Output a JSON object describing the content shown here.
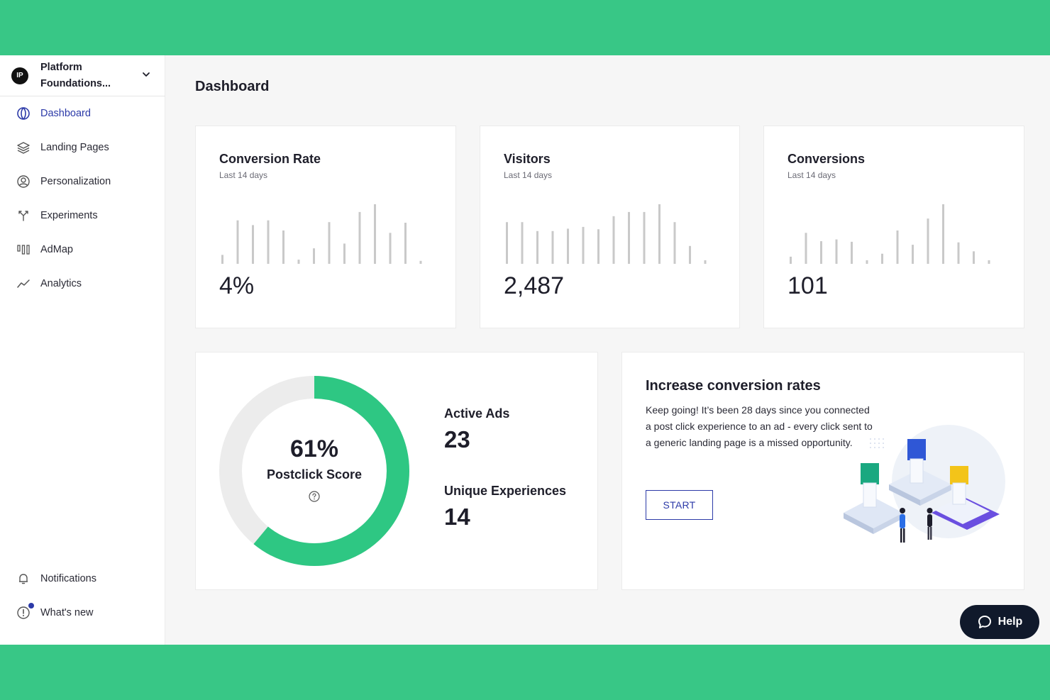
{
  "workspace": {
    "logo_text": "IP",
    "name": "Platform Foundations..."
  },
  "sidebar": {
    "items": [
      {
        "label": "Dashboard",
        "icon": "dashboard-icon",
        "active": true
      },
      {
        "label": "Landing Pages",
        "icon": "layers-icon"
      },
      {
        "label": "Personalization",
        "icon": "user-circle-icon"
      },
      {
        "label": "Experiments",
        "icon": "experiment-split-icon"
      },
      {
        "label": "AdMap",
        "icon": "admap-icon"
      },
      {
        "label": "Analytics",
        "icon": "trend-line-icon"
      }
    ],
    "bottom": [
      {
        "label": "Notifications",
        "icon": "bell-icon"
      },
      {
        "label": "What's new",
        "icon": "info-circle-icon",
        "has_unread_dot": true
      }
    ]
  },
  "page": {
    "title": "Dashboard"
  },
  "metrics": [
    {
      "title": "Conversion Rate",
      "period": "Last 14 days",
      "value": "4%",
      "bars": [
        0.15,
        0.73,
        0.65,
        0.73,
        0.56,
        0.07,
        0.26,
        0.7,
        0.34,
        0.87,
        1.0,
        0.52,
        0.69,
        0.05
      ]
    },
    {
      "title": "Visitors",
      "period": "Last 14 days",
      "value": "2,487",
      "bars": [
        0.7,
        0.7,
        0.55,
        0.55,
        0.59,
        0.62,
        0.58,
        0.8,
        0.87,
        0.87,
        1.0,
        0.7,
        0.3,
        0.06
      ]
    },
    {
      "title": "Conversions",
      "period": "Last 14 days",
      "value": "101",
      "bars": [
        0.12,
        0.52,
        0.38,
        0.41,
        0.37,
        0.06,
        0.17,
        0.56,
        0.32,
        0.76,
        1.0,
        0.36,
        0.21,
        0.06
      ]
    }
  ],
  "postclick": {
    "score": "61%",
    "score_fraction": 0.61,
    "label": "Postclick Score",
    "active_ads_label": "Active Ads",
    "active_ads": "23",
    "unique_experiences_label": "Unique Experiences",
    "unique_experiences": "14"
  },
  "promo": {
    "title": "Increase conversion rates",
    "text": "Keep going! It’s been 28 days since you connected a post click experience to an ad - every click sent to a generic landing page is a missed opportunity.",
    "button": "START"
  },
  "help": {
    "label": "Help"
  },
  "colors": {
    "brand_green": "#38c786",
    "accent_blue": "#2c3aa8",
    "donut_track": "#ececec",
    "bar_gray": "#c9c9c9",
    "help_bg": "#10192b"
  }
}
